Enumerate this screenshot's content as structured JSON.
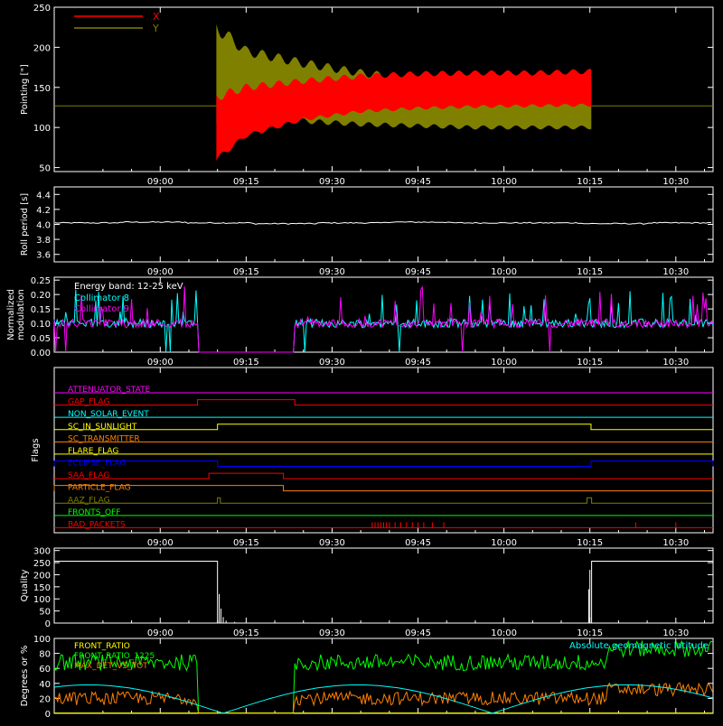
{
  "colors": {
    "background": "#000000",
    "axis": "#ffffff",
    "red": "#ff0000",
    "olive": "#808000",
    "cyan": "#00ffff",
    "magenta": "#ff00ff",
    "green": "#00ff00",
    "orange": "#ff8000",
    "yellow": "#ffff00",
    "blue": "#0000ff",
    "white": "#ffffff"
  },
  "time_ticks": [
    "09:00",
    "09:15",
    "09:30",
    "09:45",
    "10:00",
    "10:15",
    "10:30"
  ],
  "chart_data": [
    {
      "id": "pointing",
      "type": "line",
      "ylabel": "Pointing [\"]",
      "ylim": [
        45,
        250
      ],
      "yticks": [
        "50",
        "100",
        "150",
        "200",
        "250"
      ],
      "x_unit": "minutes after 09:00",
      "xlim": [
        -5,
        31
      ],
      "legend": "top-left",
      "baseline": 127,
      "active_window": [
        9.8,
        75.3
      ],
      "series": [
        {
          "name": "X",
          "color": "red",
          "samples": [
            {
              "x": 9.8,
              "lo": 60,
              "hi": 138
            },
            {
              "x": 15,
              "lo": 90,
              "hi": 150
            },
            {
              "x": 25,
              "lo": 110,
              "hi": 158
            },
            {
              "x": 35,
              "lo": 120,
              "hi": 164
            },
            {
              "x": 45,
              "lo": 124,
              "hi": 167
            },
            {
              "x": 55,
              "lo": 126,
              "hi": 168
            },
            {
              "x": 65,
              "lo": 127,
              "hi": 168
            },
            {
              "x": 75.3,
              "lo": 128,
              "hi": 170
            }
          ]
        },
        {
          "name": "Y",
          "color": "olive",
          "samples": [
            {
              "x": 9.8,
              "lo": 108,
              "hi": 225
            },
            {
              "x": 15,
              "lo": 115,
              "hi": 195
            },
            {
              "x": 25,
              "lo": 108,
              "hi": 180
            },
            {
              "x": 35,
              "lo": 104,
              "hi": 168
            },
            {
              "x": 45,
              "lo": 102,
              "hi": 160
            },
            {
              "x": 55,
              "lo": 100,
              "hi": 156
            },
            {
              "x": 65,
              "lo": 100,
              "hi": 154
            },
            {
              "x": 75.3,
              "lo": 100,
              "hi": 150
            }
          ]
        }
      ]
    },
    {
      "id": "roll",
      "type": "line",
      "ylabel": "Roll period [s]",
      "ylim": [
        3.5,
        4.5
      ],
      "yticks": [
        "3.6",
        "3.8",
        "4.0",
        "4.2",
        "4.4"
      ],
      "series": [
        {
          "color": "white",
          "values": [
            4.02,
            4.03,
            4.02,
            4.01,
            4.02,
            4.03,
            4.02,
            4.02,
            4.01,
            4.02
          ]
        }
      ]
    },
    {
      "id": "modulation",
      "type": "line",
      "ylabel": [
        "Normalized",
        "modulation"
      ],
      "ylim": [
        0,
        0.26
      ],
      "yticks": [
        "0.00",
        "0.05",
        "0.10",
        "0.15",
        "0.20",
        "0.25"
      ],
      "legend_title": "Energy band: 12-25 keV",
      "gap_window": [
        6.5,
        23.5
      ],
      "series": [
        {
          "name": "Collimator 8",
          "color": "cyan",
          "level": 0.1
        },
        {
          "name": "Collimator 9",
          "color": "magenta",
          "level": 0.1
        }
      ]
    },
    {
      "id": "flags",
      "type": "line",
      "ylabel": "Flags",
      "series": [
        {
          "name": "ATTENUATOR_STATE",
          "color": "magenta",
          "steps": []
        },
        {
          "name": "GAP_FLAG",
          "color": "red",
          "steps": [
            [
              6.5,
              23.5
            ]
          ]
        },
        {
          "name": "NON_SOLAR_EVENT",
          "color": "cyan",
          "steps": []
        },
        {
          "name": "SC_IN_SUNLIGHT",
          "color": "yellow",
          "steps": [
            [
              10,
              75.2
            ]
          ]
        },
        {
          "name": "SC_TRANSMITTER",
          "color": "orange",
          "steps": []
        },
        {
          "name": "FLARE_FLAG",
          "color": "yellow",
          "steps": []
        },
        {
          "name": "ECLIPSE_FLAG",
          "color": "blue",
          "steps": [
            [
              -20,
              10
            ],
            [
              75.2,
              120
            ]
          ]
        },
        {
          "name": "SAA_FLAG",
          "color": "red",
          "steps": [
            [
              8.5,
              21.5
            ]
          ]
        },
        {
          "name": "PARTICLE_FLAG",
          "color": "orange",
          "steps": [
            [
              -20,
              21.5
            ]
          ]
        },
        {
          "name": "AAZ_FLAG",
          "color": "olive",
          "steps": [
            [
              10,
              10.5
            ],
            [
              74.5,
              75.3
            ]
          ]
        },
        {
          "name": "FRONTS_OFF",
          "color": "green",
          "steps": []
        },
        {
          "name": "BAD_PACKETS",
          "color": "red",
          "ticks": [
            37,
            37.5,
            38,
            38.5,
            39,
            39.5,
            40,
            41,
            42,
            43,
            44,
            45,
            46,
            47.5,
            49.5,
            83,
            90
          ]
        }
      ]
    },
    {
      "id": "quality",
      "type": "line",
      "ylabel": "Quality",
      "ylim": [
        0,
        310
      ],
      "yticks": [
        "0",
        "50",
        "100",
        "150",
        "200",
        "250",
        "300"
      ],
      "series": [
        {
          "color": "white",
          "values_note": "",
          "high": 256,
          "high_windows": [
            [
              -20,
              10
            ],
            [
              75.3,
              120
            ]
          ]
        }
      ]
    },
    {
      "id": "ratios",
      "type": "line",
      "ylabel": "Degrees or %",
      "ylim": [
        0,
        100
      ],
      "yticks": [
        "0",
        "20",
        "40",
        "60",
        "80",
        "100"
      ],
      "series": [
        {
          "name": "FRONT_RATIO",
          "color": "yellow",
          "level": 0
        },
        {
          "name": "FRONT_RATIO_1225",
          "color": "green",
          "level": 68
        },
        {
          "name": "MAX_DET_VS_TOT",
          "color": "orange",
          "level": 20
        },
        {
          "name": "Absolute geomagnetic latitude",
          "color": "cyan",
          "level": 30
        }
      ]
    }
  ]
}
